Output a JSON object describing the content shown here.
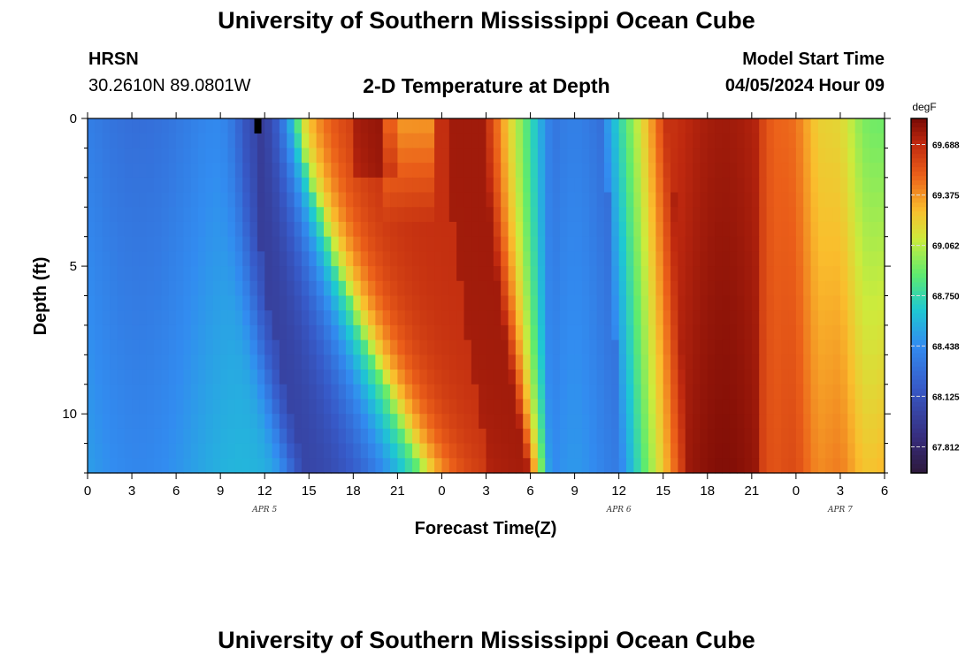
{
  "header": {
    "title_top": "University of Southern Mississippi Ocean Cube",
    "title_bottom": "University of Southern Mississippi Ocean Cube",
    "station": "HRSN",
    "coords": "30.2610N  89.0801W",
    "plot_title": "2-D Temperature at Depth",
    "model_label": "Model Start Time",
    "model_time": "04/05/2024 Hour 09"
  },
  "chart_data": {
    "type": "heatmap",
    "title": "2-D Temperature at Depth",
    "xlabel": "Forecast Time(Z)",
    "ylabel": "Depth (ft)",
    "units": "degF",
    "x_hours": [
      0,
      54
    ],
    "y_depth_ft": [
      0,
      12
    ],
    "x_ticks": [
      "0",
      "3",
      "6",
      "9",
      "12",
      "15",
      "18",
      "21",
      "0",
      "3",
      "6",
      "9",
      "12",
      "15",
      "18",
      "21",
      "0",
      "3",
      "6"
    ],
    "y_ticks": [
      "0",
      "5",
      "10"
    ],
    "day_labels": [
      "APR 5",
      "APR 6",
      "APR 7"
    ],
    "day_label_hours": [
      12,
      36,
      51
    ],
    "colorbar": {
      "label": "degF",
      "min": 67.65,
      "max": 69.85,
      "ticks": [
        "69.688",
        "69.375",
        "69.062",
        "68.750",
        "68.438",
        "68.125",
        "67.812"
      ]
    },
    "description_profiles": {
      "columns_per_hour": 2,
      "rows": 24
    }
  }
}
